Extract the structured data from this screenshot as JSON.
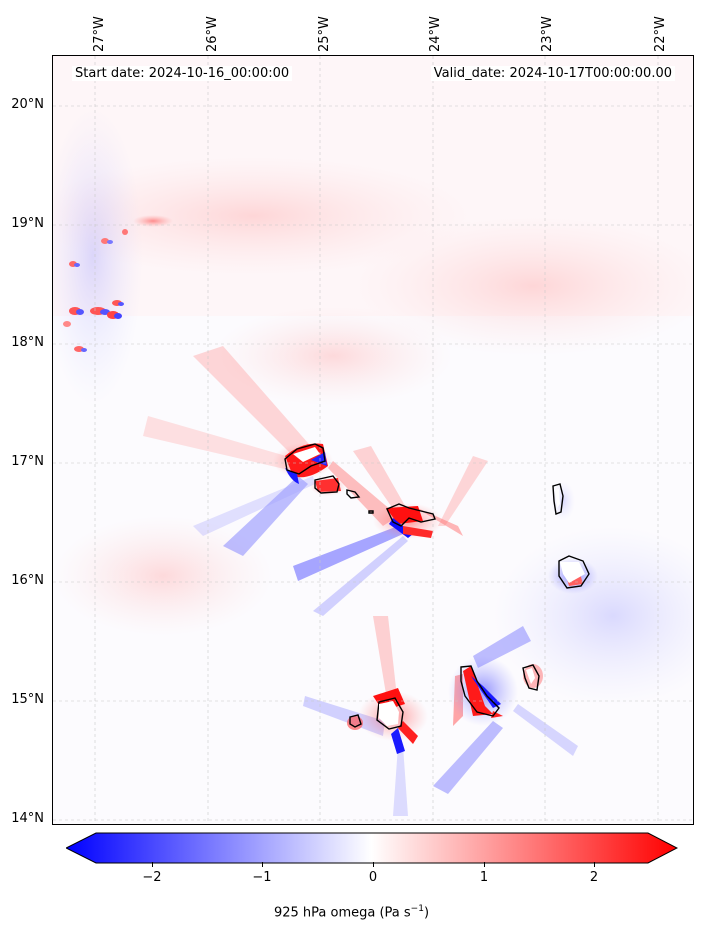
{
  "map": {
    "start_date": "Start date: 2024-10-16_00:00:00",
    "valid_date": "Valid_date: 2024-10-17T00:00:00.00",
    "lon_labels": [
      "27°W",
      "26°W",
      "25°W",
      "24°W",
      "23°W",
      "22°W"
    ],
    "lat_labels": [
      "20°N",
      "19°N",
      "18°N",
      "17°N",
      "16°N",
      "15°N",
      "14°N"
    ],
    "field": "925 hPa omega",
    "colors": {
      "negative": "#0000ff",
      "zero": "#ffffff",
      "positive": "#ff0000",
      "coast": "#000000"
    }
  },
  "colorbar": {
    "ticks": [
      "−2",
      "−1",
      "0",
      "1",
      "2"
    ],
    "label_main": "925 hPa omega (Pa s",
    "label_sup": "−1",
    "label_end": ")"
  }
}
